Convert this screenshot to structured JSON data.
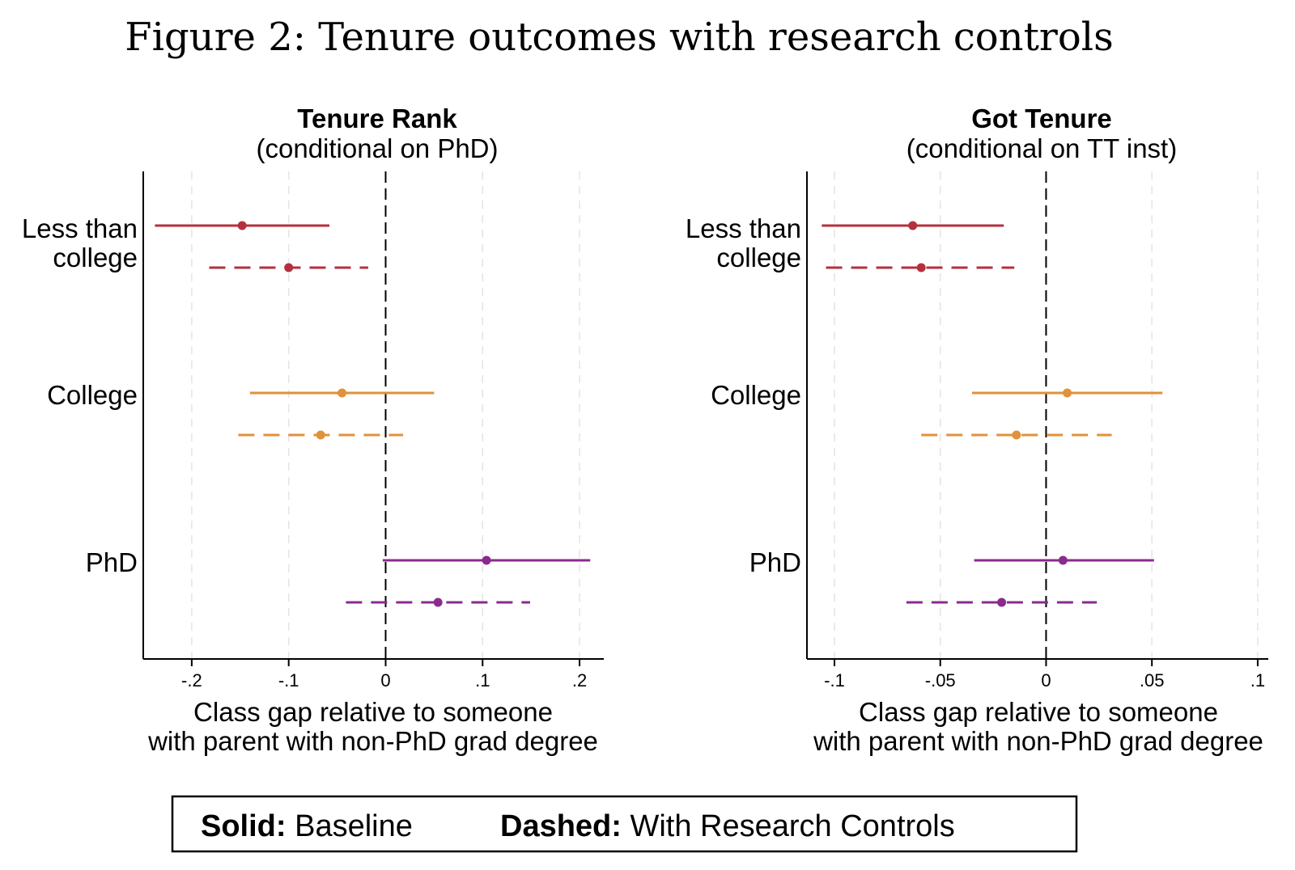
{
  "figure_title": "Figure 2: Tenure outcomes with research controls",
  "legend": {
    "solid_key": "Solid:",
    "solid_label": "Baseline",
    "dashed_key": "Dashed:",
    "dashed_label": "With Research Controls"
  },
  "colors": {
    "less_than_college": "#b5303f",
    "college": "#e0913a",
    "phd": "#8b2a8f",
    "grid": "#e4e4e4",
    "zero_line": "#000000"
  },
  "chart_data": [
    {
      "type": "coefficient_plot",
      "title": "Tenure Rank",
      "subtitle": "(conditional on PhD)",
      "xlabel": "Class gap relative to someone",
      "xlabel_line2": "with parent with non-PhD grad degree",
      "xlim": [
        -0.25,
        0.225
      ],
      "xticks": [
        -0.2,
        -0.1,
        0,
        0.1,
        0.2
      ],
      "xtick_labels": [
        "-.2",
        "-.1",
        "0",
        ".1",
        ".2"
      ],
      "grid": true,
      "categories": [
        {
          "label": [
            "Less than",
            "college"
          ],
          "color_key": "less_than_college"
        },
        {
          "label": [
            "College"
          ],
          "color_key": "college"
        },
        {
          "label": [
            "PhD"
          ],
          "color_key": "phd"
        }
      ],
      "series": [
        {
          "name": "Baseline",
          "style": "solid",
          "points": [
            {
              "est": -0.148,
              "lo": -0.238,
              "hi": -0.058
            },
            {
              "est": -0.045,
              "lo": -0.14,
              "hi": 0.05
            },
            {
              "est": 0.104,
              "lo": -0.003,
              "hi": 0.211
            }
          ]
        },
        {
          "name": "With Research Controls",
          "style": "dashed",
          "points": [
            {
              "est": -0.1,
              "lo": -0.182,
              "hi": -0.018
            },
            {
              "est": -0.067,
              "lo": -0.152,
              "hi": 0.018
            },
            {
              "est": 0.054,
              "lo": -0.041,
              "hi": 0.149
            }
          ]
        }
      ]
    },
    {
      "type": "coefficient_plot",
      "title": "Got Tenure",
      "subtitle": "(conditional on TT inst)",
      "xlabel": "Class gap relative to someone",
      "xlabel_line2": "with parent with non-PhD grad degree",
      "xlim": [
        -0.113,
        0.105
      ],
      "xticks": [
        -0.1,
        -0.05,
        0,
        0.05,
        0.1
      ],
      "xtick_labels": [
        "-.1",
        "-.05",
        "0",
        ".05",
        ".1"
      ],
      "grid": true,
      "categories": [
        {
          "label": [
            "Less than",
            "college"
          ],
          "color_key": "less_than_college"
        },
        {
          "label": [
            "College"
          ],
          "color_key": "college"
        },
        {
          "label": [
            "PhD"
          ],
          "color_key": "phd"
        }
      ],
      "series": [
        {
          "name": "Baseline",
          "style": "solid",
          "points": [
            {
              "est": -0.063,
              "lo": -0.106,
              "hi": -0.02
            },
            {
              "est": 0.01,
              "lo": -0.035,
              "hi": 0.055
            },
            {
              "est": 0.008,
              "lo": -0.034,
              "hi": 0.051
            }
          ]
        },
        {
          "name": "With Research Controls",
          "style": "dashed",
          "points": [
            {
              "est": -0.059,
              "lo": -0.104,
              "hi": -0.015
            },
            {
              "est": -0.014,
              "lo": -0.059,
              "hi": 0.031
            },
            {
              "est": -0.021,
              "lo": -0.066,
              "hi": 0.024
            }
          ]
        }
      ]
    }
  ]
}
